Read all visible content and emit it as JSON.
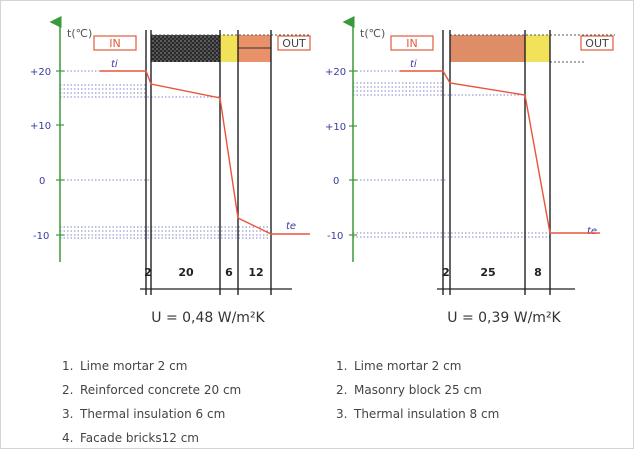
{
  "diagrams": [
    {
      "axis_label": "t(℃)",
      "y_ticks": [
        "+20",
        "+10",
        "0",
        "-10"
      ],
      "inside_label": "IN",
      "outside_label": "OUT",
      "ti_label": "ti",
      "te_label": "te",
      "thickness_labels": [
        "2",
        "20",
        "6",
        "12"
      ],
      "u_value": "U = 0,48 W/m²K",
      "temperature_profile": [
        20,
        19.2,
        14.3,
        -7.6,
        -9.7
      ],
      "layers": [
        {
          "num": "1.",
          "text": "Lime mortar 2 cm"
        },
        {
          "num": "2.",
          "text": "Reinforced concrete 20 cm"
        },
        {
          "num": "3.",
          "text": "Thermal insulation 6 cm"
        },
        {
          "num": "4.",
          "text": "Facade bricks12 cm"
        }
      ]
    },
    {
      "axis_label": "t(℃)",
      "y_ticks": [
        "+20",
        "+10",
        "0",
        "-10"
      ],
      "inside_label": "IN",
      "outside_label": "OUT",
      "ti_label": "ti",
      "te_label": "te",
      "thickness_labels": [
        "2",
        "25",
        "8"
      ],
      "u_value": "U = 0,39 W/m²K",
      "temperature_profile": [
        20,
        19.6,
        15.7,
        -9.6
      ],
      "layers": [
        {
          "num": "1.",
          "text": "Lime mortar 2 cm"
        },
        {
          "num": "2.",
          "text": "Masonry block 25 cm"
        },
        {
          "num": "3.",
          "text": "Thermal insulation 8 cm"
        }
      ]
    }
  ],
  "colors": {
    "axis": "#3a9a3a",
    "tick_labels": "#3a3aa0",
    "profile": "#e8553a",
    "label_box": "#e05a3a",
    "insulation": "#f2e25a",
    "brick": "#e9926a",
    "concrete": "#2a2a2a",
    "masonry": "#df8d66"
  }
}
